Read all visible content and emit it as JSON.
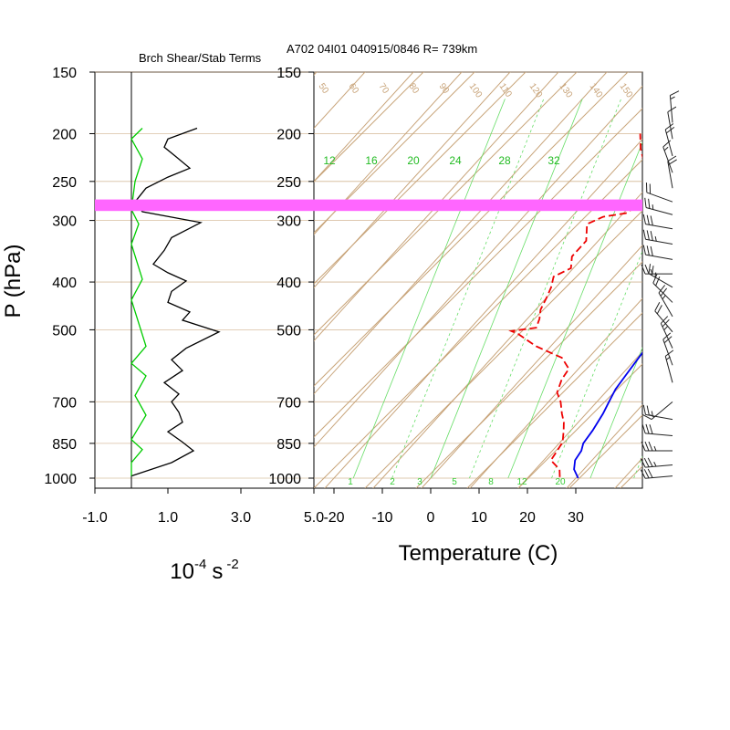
{
  "figure": {
    "title": "A702 04I01 040915/0846 R= 739km",
    "ylabel": "P (hPa)"
  },
  "colors": {
    "temperature": "#0000ee",
    "dewpoint": "#ee0000",
    "shear_term": "#000000",
    "stab_term": "#00cc00",
    "isotherm": "#c8a47a",
    "mixing_ratio": "#66dd66",
    "highlight": "#ff66ff",
    "wind": "#222222"
  },
  "chart_data": [
    {
      "type": "line",
      "title": "Brch Shear/Stab Terms",
      "xlabel_base": "10",
      "xlabel_exp1": "-4",
      "xlabel_unit": "s",
      "xlabel_exp2": "-2",
      "xlim": [
        -1.0,
        5.0
      ],
      "xticks": [
        "-1.0",
        "1.0",
        "3.0",
        "5.0"
      ],
      "xtick_values": [
        -1.0,
        1.0,
        3.0,
        5.0
      ],
      "yaxis": "log-pressure",
      "ylim": [
        1000,
        150
      ],
      "yticks": [
        "150",
        "200",
        "250",
        "300",
        "400",
        "500",
        "700",
        "850",
        "1000"
      ],
      "ytick_values": [
        150,
        200,
        250,
        300,
        400,
        500,
        700,
        850,
        1000
      ],
      "series": [
        {
          "key": "shear",
          "points": [
            [
              1.8,
              195
            ],
            [
              1.0,
              205
            ],
            [
              0.9,
              213
            ],
            [
              1.2,
              222
            ],
            [
              1.6,
              235
            ],
            [
              1.0,
              245
            ],
            [
              0.4,
              258
            ],
            [
              0.1,
              275
            ],
            [
              0.3,
              288
            ],
            [
              1.9,
              303
            ],
            [
              1.1,
              325
            ],
            [
              0.9,
              345
            ],
            [
              0.6,
              368
            ],
            [
              1.0,
              383
            ],
            [
              1.5,
              398
            ],
            [
              1.1,
              418
            ],
            [
              1.0,
              440
            ],
            [
              1.6,
              460
            ],
            [
              1.4,
              478
            ],
            [
              2.4,
              505
            ],
            [
              1.5,
              545
            ],
            [
              1.1,
              575
            ],
            [
              1.4,
              605
            ],
            [
              0.9,
              640
            ],
            [
              1.3,
              675
            ],
            [
              1.1,
              700
            ],
            [
              1.3,
              735
            ],
            [
              1.4,
              770
            ],
            [
              1.0,
              805
            ],
            [
              1.4,
              845
            ],
            [
              1.7,
              880
            ],
            [
              1.1,
              930
            ],
            [
              0.0,
              990
            ]
          ]
        },
        {
          "key": "stab",
          "points": [
            [
              0.3,
              195
            ],
            [
              0.0,
              205
            ],
            [
              0.3,
              225
            ],
            [
              0.1,
              250
            ],
            [
              0.0,
              285
            ],
            [
              0.2,
              305
            ],
            [
              0.0,
              335
            ],
            [
              0.3,
              395
            ],
            [
              0.0,
              435
            ],
            [
              0.4,
              540
            ],
            [
              0.0,
              585
            ],
            [
              0.4,
              620
            ],
            [
              0.1,
              680
            ],
            [
              0.4,
              745
            ],
            [
              0.0,
              835
            ],
            [
              0.3,
              875
            ],
            [
              0.0,
              930
            ],
            [
              0.0,
              990
            ]
          ]
        }
      ]
    },
    {
      "type": "line",
      "subtype": "skew-T",
      "xlabel": "Temperature (C)",
      "xlim": [
        -23,
        36
      ],
      "xticks": [
        "-20",
        "-10",
        "0",
        "10",
        "20",
        "30"
      ],
      "xtick_values": [
        -20,
        -10,
        0,
        10,
        20,
        30
      ],
      "yaxis": "log-pressure",
      "ylim": [
        1000,
        150
      ],
      "yticks": [
        "150",
        "200",
        "250",
        "300",
        "400",
        "500",
        "700",
        "850",
        "1000"
      ],
      "ytick_values": [
        150,
        200,
        250,
        300,
        400,
        500,
        700,
        850,
        1000
      ],
      "highlight_band_hpa": [
        272,
        287
      ],
      "mixing_ratio_labels": [
        "12",
        "16",
        "20",
        "24",
        "28",
        "32"
      ],
      "mixing_ratio_bottom_labels": [
        "1",
        "2",
        "3",
        "5",
        "8",
        "12",
        "20"
      ],
      "isotherm_top_labels": [
        "50",
        "60",
        "70",
        "80",
        "90",
        "100",
        "110",
        "120",
        "130",
        "140",
        "150"
      ],
      "series": [
        {
          "key": "temperature",
          "points": [
            [
              30.5,
              1000
            ],
            [
              28.0,
              960
            ],
            [
              26.5,
              920
            ],
            [
              26.0,
              880
            ],
            [
              25.0,
              850
            ],
            [
              24.5,
              800
            ],
            [
              23.5,
              740
            ],
            [
              22.5,
              700
            ],
            [
              21.5,
              660
            ],
            [
              21.0,
              620
            ],
            [
              20.5,
              580
            ],
            [
              20.0,
              540
            ],
            [
              20.0,
              510
            ],
            [
              19.5,
              480
            ],
            [
              18.5,
              450
            ],
            [
              18.0,
              420
            ],
            [
              17.0,
              400
            ],
            [
              15.5,
              380
            ],
            [
              13.5,
              360
            ],
            [
              11.5,
              340
            ],
            [
              10.0,
              320
            ],
            [
              9.5,
              300
            ],
            [
              8.5,
              288
            ],
            [
              7.0,
              275
            ],
            [
              5.0,
              260
            ],
            [
              3.0,
              245
            ],
            [
              1.5,
              230
            ],
            [
              1.0,
              215
            ],
            [
              0.5,
              200
            ],
            [
              0.5,
              190
            ]
          ]
        },
        {
          "key": "dewpoint",
          "points": [
            [
              26.5,
              995
            ],
            [
              25.0,
              960
            ],
            [
              21.5,
              920
            ],
            [
              21.0,
              880
            ],
            [
              20.5,
              845
            ],
            [
              18.5,
              800
            ],
            [
              17.0,
              770
            ],
            [
              15.0,
              740
            ],
            [
              12.5,
              700
            ],
            [
              10.0,
              670
            ],
            [
              8.5,
              630
            ],
            [
              8.0,
              600
            ],
            [
              4.5,
              570
            ],
            [
              -3.0,
              540
            ],
            [
              -9.0,
              510
            ],
            [
              -11.0,
              503
            ],
            [
              -6.5,
              495
            ],
            [
              -7.5,
              475
            ],
            [
              -9.0,
              455
            ],
            [
              -10.0,
              430
            ],
            [
              -11.0,
              410
            ],
            [
              -12.5,
              390
            ],
            [
              -10.5,
              375
            ],
            [
              -12.5,
              355
            ],
            [
              -12.5,
              330
            ],
            [
              -15.5,
              305
            ],
            [
              -13.5,
              295
            ],
            [
              -9.5,
              290
            ],
            [
              -8.5,
              280
            ],
            [
              -7.0,
              265
            ],
            [
              -11.5,
              245
            ],
            [
              -15.0,
              230
            ],
            [
              -18.5,
              215
            ],
            [
              -21.5,
              200
            ]
          ]
        }
      ],
      "wind_barbs": [
        {
          "p": 190,
          "dir": 355,
          "spd": 15
        },
        {
          "p": 205,
          "dir": 350,
          "spd": 10
        },
        {
          "p": 222,
          "dir": 345,
          "spd": 20
        },
        {
          "p": 240,
          "dir": 340,
          "spd": 15
        },
        {
          "p": 258,
          "dir": 350,
          "spd": 20
        },
        {
          "p": 275,
          "dir": 290,
          "spd": 20
        },
        {
          "p": 292,
          "dir": 285,
          "spd": 25
        },
        {
          "p": 312,
          "dir": 280,
          "spd": 30
        },
        {
          "p": 335,
          "dir": 280,
          "spd": 35
        },
        {
          "p": 360,
          "dir": 280,
          "spd": 30
        },
        {
          "p": 385,
          "dir": 270,
          "spd": 25
        },
        {
          "p": 410,
          "dir": 300,
          "spd": 25
        },
        {
          "p": 440,
          "dir": 315,
          "spd": 20
        },
        {
          "p": 470,
          "dir": 330,
          "spd": 25
        },
        {
          "p": 505,
          "dir": 320,
          "spd": 20
        },
        {
          "p": 545,
          "dir": 335,
          "spd": 25
        },
        {
          "p": 590,
          "dir": 340,
          "spd": 20
        },
        {
          "p": 640,
          "dir": 345,
          "spd": 15
        },
        {
          "p": 700,
          "dir": 230,
          "spd": 15
        },
        {
          "p": 760,
          "dir": 280,
          "spd": 25
        },
        {
          "p": 820,
          "dir": 275,
          "spd": 30
        },
        {
          "p": 880,
          "dir": 270,
          "spd": 35
        },
        {
          "p": 940,
          "dir": 265,
          "spd": 35
        },
        {
          "p": 990,
          "dir": 265,
          "spd": 30
        }
      ]
    }
  ]
}
